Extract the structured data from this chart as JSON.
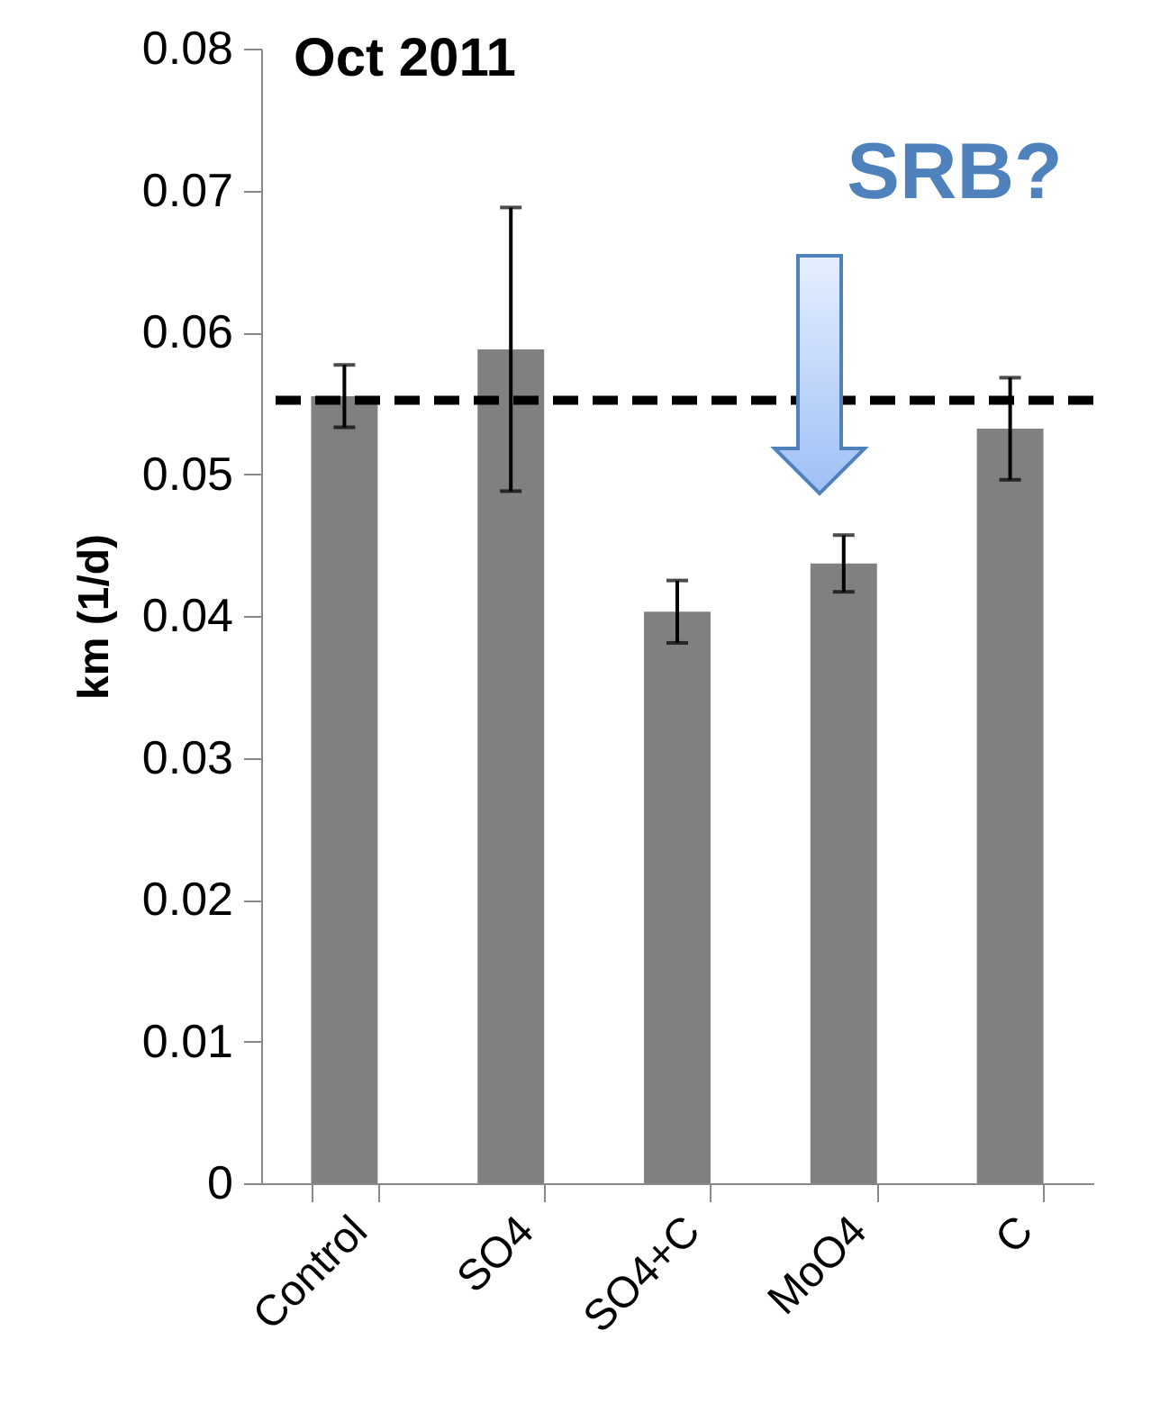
{
  "chart_data": {
    "type": "bar",
    "title": "Oct 2011",
    "ylabel": "km  (1/d)",
    "categories": [
      "Control",
      "SO4",
      "SO4+C",
      "MoO4",
      "C"
    ],
    "values": [
      0.0555,
      0.0588,
      0.0403,
      0.0437,
      0.0532
    ],
    "errors": [
      0.0022,
      0.01,
      0.0022,
      0.002,
      0.0036
    ],
    "color": "#808080",
    "ylim": [
      0,
      0.08
    ],
    "yticks": [
      0,
      0.01,
      0.02,
      0.03,
      0.04,
      0.05,
      0.06,
      0.07,
      0.08
    ],
    "grid": false,
    "ref_lines": [
      {
        "axis": "y",
        "value": 0.0552,
        "color": "#000000",
        "line_style": "dashed"
      }
    ],
    "annotations": [
      "SRB?"
    ]
  }
}
